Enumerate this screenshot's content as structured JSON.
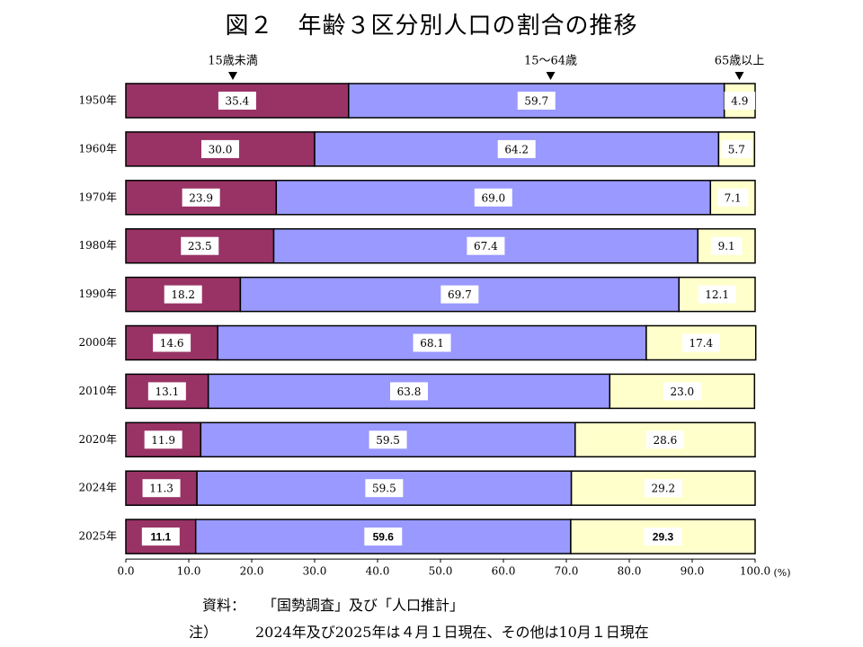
{
  "title": "図２　年齢３区分別人口の割合の推移",
  "chart_data": {
    "type": "bar",
    "orientation": "horizontal",
    "stacked": true,
    "categories": [
      "1950年",
      "1960年",
      "1970年",
      "1980年",
      "1990年",
      "2000年",
      "2010年",
      "2020年",
      "2024年",
      "2025年"
    ],
    "series": [
      {
        "name": "15歳未満",
        "color": "#993366",
        "values": [
          35.4,
          30.0,
          23.9,
          23.5,
          18.2,
          14.6,
          13.1,
          11.9,
          11.3,
          11.1
        ]
      },
      {
        "name": "15～64歳",
        "color": "#9999ff",
        "values": [
          59.7,
          64.2,
          69.0,
          67.4,
          69.7,
          68.1,
          63.8,
          59.5,
          59.5,
          59.6
        ]
      },
      {
        "name": "65歳以上",
        "color": "#ffffcc",
        "values": [
          4.9,
          5.7,
          7.1,
          9.1,
          12.1,
          17.4,
          23.0,
          28.6,
          29.2,
          29.3
        ]
      }
    ],
    "value_labels": [
      [
        "35.4",
        "59.7",
        "4.9"
      ],
      [
        "30.0",
        "64.2",
        "5.7"
      ],
      [
        "23.9",
        "69.0",
        "7.1"
      ],
      [
        "23.5",
        "67.4",
        "9.1"
      ],
      [
        "18.2",
        "69.7",
        "12.1"
      ],
      [
        "14.6",
        "68.1",
        "17.4"
      ],
      [
        "13.1",
        "63.8",
        "23.0"
      ],
      [
        "11.9",
        "59.5",
        "28.6"
      ],
      [
        "11.3",
        "59.5",
        "29.2"
      ],
      [
        "11.1",
        "59.6",
        "29.3"
      ]
    ],
    "xlim": [
      0,
      100
    ],
    "xticks": [
      "0.0",
      "10.0",
      "20.0",
      "30.0",
      "40.0",
      "50.0",
      "60.0",
      "70.0",
      "80.0",
      "90.0",
      "100.0"
    ],
    "x_unit": "(%)",
    "legend_markers": [
      {
        "label": "15歳未満",
        "x": 17
      },
      {
        "label": "15～64歳",
        "x": 67.5
      },
      {
        "label": "65歳以上",
        "x": 97.5
      }
    ],
    "grid": false
  },
  "source": {
    "label": "資料：",
    "text": "「国勢調査」及び「人口推計」"
  },
  "note": {
    "label": "注）",
    "text": "2024年及び2025年は４月１日現在、その他は10月１日現在"
  }
}
